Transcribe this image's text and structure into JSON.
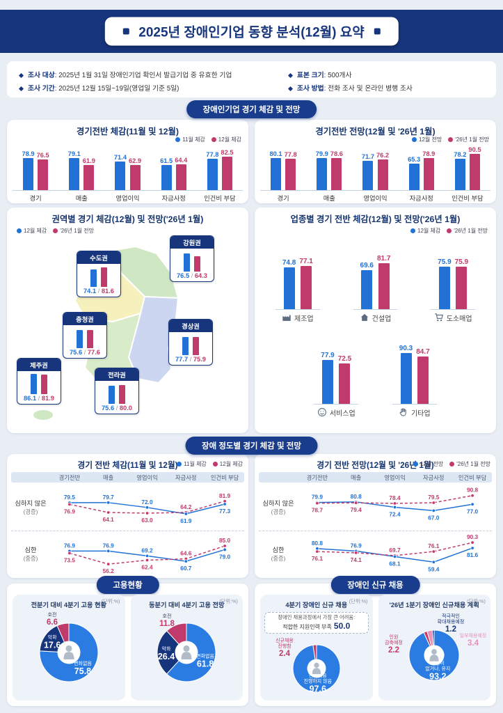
{
  "header": {
    "title": "2025년 장애인기업 동향 분석(12월) 요약"
  },
  "survey": {
    "items": [
      {
        "label": "조사 대상",
        "value": ": 2025년 1월 31일 장애인기업 확인서 발급기업 중 유효한 기업"
      },
      {
        "label": "표본 크기",
        "value": ": 500개사"
      },
      {
        "label": "조사 기간",
        "value": ": 2025년 12월 15일~19일(영업일 기준 5일)"
      },
      {
        "label": "조사 방법",
        "value": ": 전화 조사 및 온라인 병행 조사"
      }
    ]
  },
  "sections": {
    "business_badge": "장애인기업 경기 체감 및 전망",
    "severity_badge": "장애 정도별 경기 체감 및 전망",
    "employment_badge": "고용현황",
    "hiring_badge": "장애인 신규 채용"
  },
  "colors": {
    "navy": "#16357c",
    "blue": "#2171d6",
    "magenta": "#c13a6c",
    "pink": "#e891b5"
  },
  "chart_data": [
    {
      "id": "perception-bar",
      "type": "bar",
      "title": "경기전반 체감(11월 및 12월)",
      "categories": [
        "경기",
        "매출",
        "영업이익",
        "자금사정",
        "인건비 부담"
      ],
      "series": [
        {
          "name": "11월 체감",
          "color": "#2171d6",
          "values": [
            78.9,
            79.1,
            71.4,
            61.5,
            77.8
          ]
        },
        {
          "name": "12월 체감",
          "color": "#c13a6c",
          "values": [
            76.5,
            61.9,
            62.9,
            64.4,
            82.5
          ]
        }
      ],
      "ylim": [
        0,
        100
      ]
    },
    {
      "id": "outlook-bar",
      "type": "bar",
      "title": "경기전반 전망(12월 및 '26년 1월)",
      "categories": [
        "경기",
        "매출",
        "영업이익",
        "자금사정",
        "인건비 부담"
      ],
      "series": [
        {
          "name": "12월 전망",
          "color": "#2171d6",
          "values": [
            80.1,
            79.9,
            71.7,
            65.3,
            78.2
          ]
        },
        {
          "name": "'26년 1월 전망",
          "color": "#c13a6c",
          "values": [
            77.8,
            78.6,
            76.2,
            78.9,
            90.5
          ]
        }
      ],
      "ylim": [
        0,
        100
      ]
    },
    {
      "id": "region-bar",
      "type": "bar",
      "title": "권역별 경기 체감(12월) 및 전망('26년 1월)",
      "legend": [
        {
          "name": "12월 체감",
          "color": "#2171d6"
        },
        {
          "name": "'26년 1월 전망",
          "color": "#c13a6c"
        }
      ],
      "regions": [
        {
          "name": "수도권",
          "values": [
            74.1,
            81.6
          ],
          "pos": [
            100,
            62
          ]
        },
        {
          "name": "강원권",
          "values": [
            76.5,
            64.3
          ],
          "pos": [
            234,
            40
          ]
        },
        {
          "name": "충청권",
          "values": [
            75.6,
            77.6
          ],
          "pos": [
            80,
            150
          ]
        },
        {
          "name": "경상권",
          "values": [
            77.7,
            75.9
          ],
          "pos": [
            232,
            160
          ]
        },
        {
          "name": "제주권",
          "values": [
            86.1,
            81.9
          ],
          "pos": [
            14,
            216
          ]
        },
        {
          "name": "전라권",
          "values": [
            75.6,
            80.0
          ],
          "pos": [
            126,
            230
          ]
        }
      ]
    },
    {
      "id": "industry-bar",
      "type": "bar",
      "title": "업종별 경기 전반 체감(12월) 및 전망('26년 1월)",
      "legend": [
        {
          "name": "12월 체감",
          "color": "#2171d6"
        },
        {
          "name": "'26년 1월 전망",
          "color": "#c13a6c"
        }
      ],
      "industries": [
        {
          "name": "제조업",
          "icon": "factory-icon",
          "values": [
            74.8,
            77.1
          ]
        },
        {
          "name": "건설업",
          "icon": "house-icon",
          "values": [
            69.6,
            81.7
          ]
        },
        {
          "name": "도소매업",
          "icon": "cart-icon",
          "values": [
            75.9,
            75.9
          ]
        },
        {
          "name": "서비스업",
          "icon": "smile-icon",
          "values": [
            77.9,
            72.5
          ]
        },
        {
          "name": "기타업",
          "icon": "hand-icon",
          "values": [
            90.3,
            84.7
          ]
        }
      ]
    },
    {
      "id": "severity-perception",
      "type": "line",
      "title": "경기 전반 체감(11월 및 12월)",
      "categories": [
        "경기전반",
        "매출",
        "영업이익",
        "자금사정",
        "인건비 부담"
      ],
      "series_names": [
        {
          "name": "11월 체감",
          "color": "#2171d6",
          "dash": false
        },
        {
          "name": "12월 체감",
          "color": "#c13a6c",
          "dash": true
        }
      ],
      "rows": [
        {
          "label": "심하지 않은",
          "sublabel": "(경증)",
          "series": [
            [
              79.5,
              79.7,
              72.0,
              61.9,
              77.3
            ],
            [
              76.9,
              64.1,
              63.0,
              64.2,
              81.9
            ]
          ]
        },
        {
          "label": "심한",
          "sublabel": "(중증)",
          "series": [
            [
              76.9,
              76.9,
              69.2,
              60.7,
              79.0
            ],
            [
              73.5,
              56.2,
              62.4,
              64.6,
              85.0
            ]
          ]
        }
      ],
      "ylim": [
        52,
        96
      ]
    },
    {
      "id": "severity-outlook",
      "type": "line",
      "title": "경기 전반 전망(12월 및 '26년 1월)",
      "categories": [
        "경기전반",
        "매출",
        "영업이익",
        "자금사정",
        "인건비 부담"
      ],
      "series_names": [
        {
          "name": "12월 전망",
          "color": "#2171d6",
          "dash": false
        },
        {
          "name": "'26년 1월 전망",
          "color": "#c13a6c",
          "dash": true
        }
      ],
      "rows": [
        {
          "label": "심하지 않은",
          "sublabel": "(경증)",
          "series": [
            [
              79.9,
              80.8,
              72.4,
              67.0,
              77.0
            ],
            [
              78.7,
              79.4,
              78.4,
              79.5,
              90.8
            ]
          ]
        },
        {
          "label": "심한",
          "sublabel": "(중증)",
          "series": [
            [
              80.8,
              76.9,
              68.1,
              59.4,
              81.6
            ],
            [
              76.1,
              74.1,
              69.7,
              76.1,
              90.3
            ]
          ]
        }
      ],
      "ylim": [
        52,
        96
      ]
    },
    {
      "id": "emp-status",
      "type": "pie",
      "title": "전분기 대비 4분기 고용 현황",
      "unit": "(단위:%)",
      "slices": [
        {
          "name": "변화없음",
          "value": 75.8,
          "color": "#2b7ce2",
          "placement": "inside"
        },
        {
          "name": "악화",
          "value": 17.6,
          "color": "#16357c",
          "placement": "inside"
        },
        {
          "name": "호전",
          "value": 6.6,
          "color": "#c13a6c",
          "placement": "outside",
          "pos": [
            -24,
            -52
          ]
        }
      ]
    },
    {
      "id": "emp-outlook",
      "type": "pie",
      "title": "동분기 대비 4분기 고용 전망",
      "unit": "(단위:%)",
      "slices": [
        {
          "name": "변화없음",
          "value": 61.8,
          "color": "#2b7ce2",
          "placement": "inside"
        },
        {
          "name": "악화",
          "value": 26.4,
          "color": "#16357c",
          "placement": "inside"
        },
        {
          "name": "호전",
          "value": 11.8,
          "color": "#c13a6c",
          "placement": "outside",
          "pos": [
            -28,
            -50
          ]
        }
      ]
    },
    {
      "id": "hire-q4",
      "type": "pie",
      "title": "4분기 장애인 신규 채용",
      "unit": "(단위:%)",
      "callout": {
        "line1": "장애인 채용과정에서 가장 큰 어려움:",
        "line2": "적합한 지원인력 부족",
        "value": "50.0"
      },
      "slices": [
        {
          "name": "신규채용 진행하지 않음",
          "lines": [
            "신규채용",
            "진행하지 않음"
          ],
          "value": 97.6,
          "color": "#2b7ce2",
          "placement": "inside"
        },
        {
          "name": "신규채용 진행함",
          "lines": [
            "신규채용",
            "진행함"
          ],
          "value": 2.4,
          "color": "#c13a6c",
          "placement": "outside",
          "pos": [
            -46,
            -38
          ],
          "name_colored": true
        }
      ]
    },
    {
      "id": "hire-plan",
      "type": "pie",
      "title": "'26년 1분기 장애인 신규채용 계획",
      "unit": "(단위:%)",
      "slices": [
        {
          "name": "채용이 없거나, 유지",
          "lines": [
            "채용이",
            "없거나, 유지"
          ],
          "value": 93.2,
          "color": "#2b7ce2",
          "placement": "inside"
        },
        {
          "name": "인원 감축예정",
          "lines": [
            "인원",
            "감축예정"
          ],
          "value": 2.2,
          "color": "#c13a6c",
          "placement": "outside",
          "pos": [
            -58,
            -24
          ],
          "name_colored": true
        },
        {
          "name": "일부채용예정",
          "value": 3.4,
          "color": "#e891b5",
          "placement": "outside",
          "pos": [
            56,
            -26
          ],
          "name_colored": true
        },
        {
          "name": "적극적인 확대채용예정",
          "lines": [
            "적극적인",
            "확대채용예정"
          ],
          "value": 1.2,
          "color": "#16357c",
          "placement": "outside",
          "pos": [
            24,
            -54
          ],
          "name_colored": true
        }
      ]
    }
  ]
}
